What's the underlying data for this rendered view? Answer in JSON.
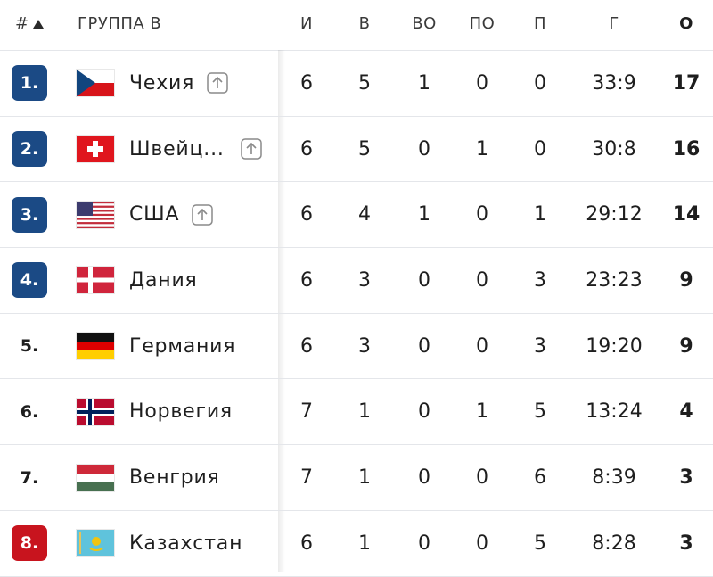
{
  "table": {
    "header": [
      "#",
      "ГРУППА В",
      "И",
      "В",
      "ВО",
      "ПО",
      "П",
      "Г",
      "О"
    ],
    "rows": [
      {
        "rank": "1.",
        "badge_color": "#1b4a85",
        "team": "Чехия",
        "trend_up": true,
        "stats": [
          6,
          5,
          1,
          0,
          0,
          "33:9"
        ],
        "points": 17
      },
      {
        "rank": "2.",
        "badge_color": "#1b4a85",
        "team": "Швейц...",
        "trend_up": true,
        "stats": [
          6,
          5,
          0,
          1,
          0,
          "30:8"
        ],
        "points": 16
      },
      {
        "rank": "3.",
        "badge_color": "#1b4a85",
        "team": "США",
        "trend_up": true,
        "stats": [
          6,
          4,
          1,
          0,
          1,
          "29:12"
        ],
        "points": 14
      },
      {
        "rank": "4.",
        "badge_color": "#1b4a85",
        "team": "Дания",
        "trend_up": false,
        "stats": [
          6,
          3,
          0,
          0,
          3,
          "23:23"
        ],
        "points": 9
      },
      {
        "rank": "5.",
        "badge_color": null,
        "team": "Германия",
        "trend_up": false,
        "stats": [
          6,
          3,
          0,
          0,
          3,
          "19:20"
        ],
        "points": 9
      },
      {
        "rank": "6.",
        "badge_color": null,
        "team": "Норвегия",
        "trend_up": false,
        "stats": [
          7,
          1,
          0,
          1,
          5,
          "13:24"
        ],
        "points": 4
      },
      {
        "rank": "7.",
        "badge_color": null,
        "team": "Венгрия",
        "trend_up": false,
        "stats": [
          7,
          1,
          0,
          0,
          6,
          "8:39"
        ],
        "points": 3
      },
      {
        "rank": "8.",
        "badge_color": "#c8141e",
        "team": "Казахстан",
        "trend_up": false,
        "stats": [
          6,
          1,
          0,
          0,
          5,
          "8:28"
        ],
        "points": 3
      }
    ]
  }
}
